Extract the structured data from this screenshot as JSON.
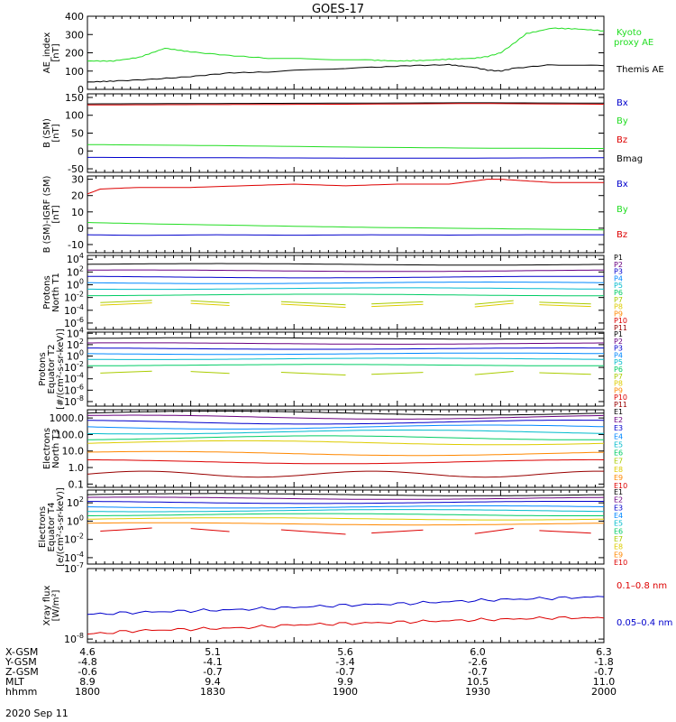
{
  "title": "GOES-17",
  "date": "2020 Sep 11",
  "chart_data": [
    {
      "type": "line",
      "ylabel": [
        "AE_index",
        "[nT]"
      ],
      "yticks": [
        "400",
        "300",
        "200",
        "100",
        "0"
      ],
      "legend": [
        {
          "name": "Kyoto",
          "color": "#22dd22"
        },
        {
          "name": "proxy AE",
          "color": "#22dd22"
        },
        {
          "name": "Themis AE",
          "color": "#000000"
        }
      ],
      "series": [
        {
          "name": "Kyoto proxy AE",
          "color": "#22dd22",
          "x": [
            0,
            10,
            20,
            30,
            40,
            55,
            70,
            90,
            110,
            120,
            130,
            140,
            150,
            155,
            160,
            165,
            170,
            180,
            190,
            200
          ],
          "y": [
            155,
            155,
            175,
            225,
            205,
            185,
            170,
            165,
            160,
            155,
            158,
            165,
            170,
            180,
            200,
            250,
            305,
            335,
            330,
            320
          ]
        },
        {
          "name": "Themis AE",
          "color": "#000000",
          "x": [
            0,
            10,
            25,
            40,
            55,
            70,
            90,
            110,
            125,
            140,
            150,
            155,
            160,
            165,
            180,
            200
          ],
          "y": [
            40,
            45,
            55,
            70,
            90,
            95,
            110,
            120,
            130,
            135,
            120,
            105,
            100,
            115,
            135,
            130
          ]
        }
      ]
    },
    {
      "type": "line",
      "ylabel": [
        "B (SM)",
        "[nT]"
      ],
      "yticks": [
        "150",
        "100",
        "50",
        "0",
        "-50"
      ],
      "legend": [
        {
          "name": "Bx",
          "color": "#0000cc"
        },
        {
          "name": "By",
          "color": "#22dd22"
        },
        {
          "name": "Bz",
          "color": "#dd0000"
        },
        {
          "name": "Bmag",
          "color": "#000000"
        }
      ],
      "series": [
        {
          "name": "Bmag",
          "color": "#000000",
          "x": [
            0,
            50,
            100,
            150,
            200
          ],
          "y": [
            132,
            133,
            134,
            135,
            134
          ]
        },
        {
          "name": "Bz",
          "color": "#dd0000",
          "x": [
            0,
            50,
            100,
            150,
            200
          ],
          "y": [
            129,
            130,
            131,
            133,
            131
          ]
        },
        {
          "name": "By",
          "color": "#22dd22",
          "x": [
            0,
            50,
            100,
            150,
            200
          ],
          "y": [
            18,
            15,
            11,
            8,
            7
          ]
        },
        {
          "name": "Bx",
          "color": "#0000cc",
          "x": [
            0,
            50,
            100,
            150,
            200
          ],
          "y": [
            -18,
            -19,
            -20,
            -20,
            -19
          ]
        }
      ]
    },
    {
      "type": "line",
      "ylabel": [
        "B (SM)-IGRF (SM)",
        "[nT]"
      ],
      "yticks": [
        "30",
        "20",
        "10",
        "0",
        "-10"
      ],
      "legend": [
        {
          "name": "Bx",
          "color": "#0000cc"
        },
        {
          "name": "By",
          "color": "#22dd22"
        },
        {
          "name": "Bz",
          "color": "#dd0000"
        }
      ],
      "series": [
        {
          "name": "Bz",
          "color": "#dd0000",
          "x": [
            0,
            5,
            20,
            40,
            60,
            80,
            100,
            120,
            140,
            150,
            155,
            160,
            170,
            180,
            200
          ],
          "y": [
            21,
            24,
            25,
            25,
            26,
            27,
            26,
            27,
            27,
            29,
            30,
            30,
            29,
            28,
            28
          ]
        },
        {
          "name": "By",
          "color": "#22dd22",
          "x": [
            0,
            20,
            50,
            80,
            110,
            140,
            170,
            200
          ],
          "y": [
            3.5,
            2.8,
            2,
            1.2,
            0.5,
            0,
            -0.5,
            -1
          ]
        },
        {
          "name": "Bx",
          "color": "#0000cc",
          "x": [
            0,
            20,
            50,
            80,
            110,
            140,
            170,
            200
          ],
          "y": [
            -4,
            -4.4,
            -4,
            -4.3,
            -4,
            -4.2,
            -4,
            -4
          ]
        }
      ]
    },
    {
      "type": "line",
      "ylabel": [
        "Protons",
        "North T1"
      ],
      "yticks": [
        "10^4",
        "10^2",
        "10^0",
        "10^-2",
        "10^-4",
        "10^-6"
      ],
      "legend": [
        "P1",
        "P2",
        "P3",
        "P4",
        "P5",
        "P6",
        "P7",
        "P8",
        "P9",
        "P10",
        "P11"
      ],
      "legend_colors": [
        "#000000",
        "#6a0080",
        "#0000cc",
        "#0088ff",
        "#00bbcc",
        "#00cc66",
        "#aacc00",
        "#ddcc00",
        "#ff8800",
        "#dd0000",
        "#990000"
      ],
      "series_logy": [
        {
          "color": "#000000",
          "y": 3.2
        },
        {
          "color": "#6a0080",
          "y": 2.2
        },
        {
          "color": "#0000cc",
          "y": 1.2
        },
        {
          "color": "#0088ff",
          "y": 0.3
        },
        {
          "color": "#00bbcc",
          "y": -0.6
        },
        {
          "color": "#00cc66",
          "y": -1.6
        },
        {
          "color": "#aacc00",
          "y": -2.8,
          "sparse": true
        },
        {
          "color": "#ddcc00",
          "y": -3.2,
          "sparse": true
        }
      ]
    },
    {
      "type": "line",
      "ylabel": [
        "Protons",
        "Equator T2",
        "[#/(cm²-s-sr-keV)]"
      ],
      "yticks": [
        "10^4",
        "10^2",
        "10^0",
        "10^-2",
        "10^-4",
        "10^-6",
        "10^-8"
      ],
      "legend": [
        "P1",
        "P2",
        "P3",
        "P4",
        "P5",
        "P6",
        "P7",
        "P8",
        "P9",
        "P10",
        "P11"
      ],
      "legend_colors": [
        "#000000",
        "#6a0080",
        "#0000cc",
        "#0088ff",
        "#00bbcc",
        "#00cc66",
        "#aacc00",
        "#ddcc00",
        "#ff8800",
        "#dd0000",
        "#990000"
      ],
      "series_logy": [
        {
          "color": "#000000",
          "y": 3.1
        },
        {
          "color": "#6a0080",
          "y": 2.2
        },
        {
          "color": "#0000cc",
          "y": 1.3
        },
        {
          "color": "#0088ff",
          "y": 0.4
        },
        {
          "color": "#00bbcc",
          "y": -0.5
        },
        {
          "color": "#00cc66",
          "y": -1.6
        },
        {
          "color": "#aacc00",
          "y": -3.0,
          "sparse": true
        }
      ]
    },
    {
      "type": "line",
      "ylabel": [
        "Electrons",
        "North T3"
      ],
      "yticks": [
        "1000.0",
        "100.0",
        "10.0",
        "1.0",
        "0.1"
      ],
      "legend": [
        "E1",
        "E2",
        "E3",
        "E4",
        "E5",
        "E6",
        "E7",
        "E8",
        "E9",
        "E10"
      ],
      "legend_colors": [
        "#000000",
        "#6a0080",
        "#0000cc",
        "#0088ff",
        "#00bbcc",
        "#00cc66",
        "#aacc00",
        "#ddcc00",
        "#ff8800",
        "#dd0000"
      ],
      "series_logy": [
        {
          "color": "#000000",
          "y": 3.3
        },
        {
          "color": "#6a0080",
          "y": 3.05
        },
        {
          "color": "#0000cc",
          "y": 2.75
        },
        {
          "color": "#0088ff",
          "y": 2.45
        },
        {
          "color": "#00bbcc",
          "y": 2.15
        },
        {
          "color": "#00cc66",
          "y": 1.8
        },
        {
          "color": "#ddcc00",
          "y": 1.5
        },
        {
          "color": "#ff8800",
          "y": 0.85
        },
        {
          "color": "#dd0000",
          "y": 0.35
        },
        {
          "color": "#990000",
          "y": -0.4,
          "wavy": true
        }
      ]
    },
    {
      "type": "line",
      "ylabel": [
        "Electrons",
        "Equator T4",
        "[e/(cm²-s-sr-keV)]"
      ],
      "yticks": [
        "10^2",
        "10^0",
        "10^-2",
        "10^-4"
      ],
      "legend": [
        "E1",
        "E2",
        "E3",
        "E4",
        "E5",
        "E6",
        "E7",
        "E8",
        "E9",
        "E10"
      ],
      "legend_colors": [
        "#000000",
        "#6a0080",
        "#0000cc",
        "#0088ff",
        "#00bbcc",
        "#00cc66",
        "#aacc00",
        "#ddcc00",
        "#ff8800",
        "#dd0000"
      ],
      "series_logy": [
        {
          "color": "#000000",
          "y": 2.9
        },
        {
          "color": "#6a0080",
          "y": 2.5
        },
        {
          "color": "#0000cc",
          "y": 2.05
        },
        {
          "color": "#0088ff",
          "y": 1.55
        },
        {
          "color": "#00bbcc",
          "y": 1.15
        },
        {
          "color": "#00cc66",
          "y": 0.7
        },
        {
          "color": "#ddcc00",
          "y": 0.25
        },
        {
          "color": "#ff8800",
          "y": -0.3
        },
        {
          "color": "#dd0000",
          "y": -1.1,
          "sparse": true
        }
      ]
    },
    {
      "type": "line",
      "ylabel": [
        "Xray flux",
        "[W/m²]"
      ],
      "yticks": [
        "10^-7",
        "10^-8"
      ],
      "legend": [
        {
          "name": "0.1–0.8 nm",
          "color": "#dd0000"
        },
        {
          "name": "0.05–0.4 nm",
          "color": "#0000cc"
        }
      ],
      "series": [
        {
          "name": "0.05–0.4 nm",
          "color": "#0000cc",
          "x": [
            0,
            20,
            40,
            60,
            80,
            100,
            120,
            140,
            160,
            180,
            200
          ],
          "y": [
            -7.65,
            -7.62,
            -7.6,
            -7.58,
            -7.55,
            -7.52,
            -7.5,
            -7.47,
            -7.44,
            -7.42,
            -7.4
          ]
        },
        {
          "name": "0.1–0.8 nm",
          "color": "#dd0000",
          "x": [
            0,
            20,
            40,
            60,
            80,
            100,
            120,
            140,
            160,
            180,
            200
          ],
          "y": [
            -7.93,
            -7.88,
            -7.86,
            -7.84,
            -7.8,
            -7.78,
            -7.76,
            -7.74,
            -7.72,
            -7.7,
            -7.7
          ]
        }
      ]
    }
  ],
  "orbit_table": {
    "rows": [
      {
        "label": "X-GSM",
        "values": [
          "4.6",
          "5.1",
          "5.6",
          "6.0",
          "6.3"
        ]
      },
      {
        "label": "Y-GSM",
        "values": [
          "-4.8",
          "-4.1",
          "-3.4",
          "-2.6",
          "-1.8"
        ]
      },
      {
        "label": "Z-GSM",
        "values": [
          "-0.6",
          "-0.7",
          "-0.7",
          "-0.7",
          "-0.7"
        ]
      },
      {
        "label": "MLT",
        "values": [
          "8.9",
          "9.4",
          "9.9",
          "10.5",
          "11.0"
        ]
      },
      {
        "label": "hhmm",
        "values": [
          "1800",
          "1830",
          "1900",
          "1930",
          "2000"
        ]
      }
    ]
  }
}
